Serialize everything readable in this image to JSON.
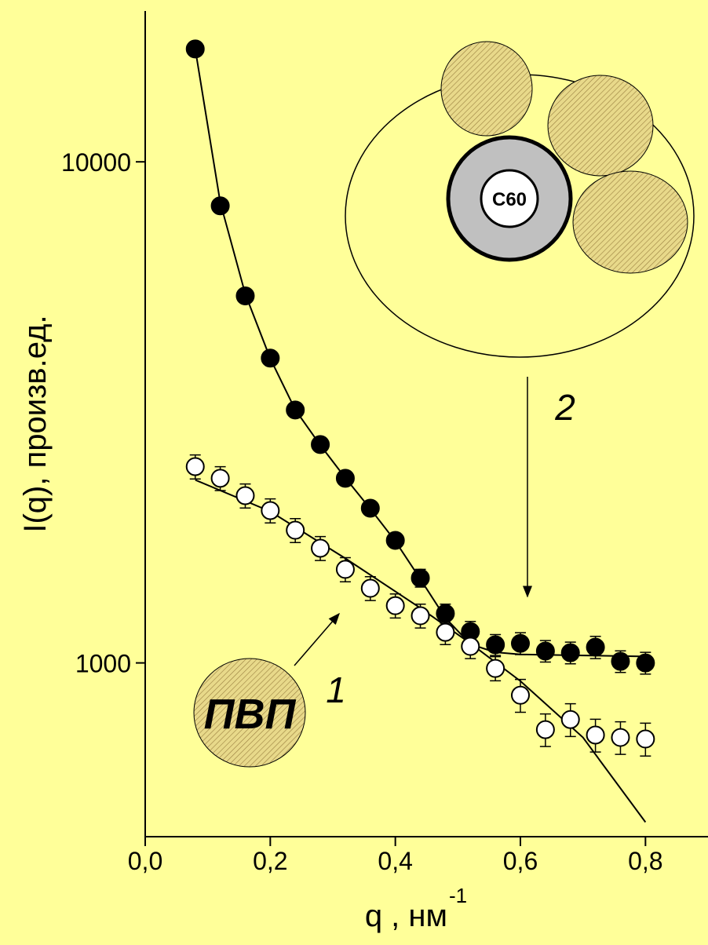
{
  "chart_data": {
    "type": "scatter",
    "log_y": true,
    "ylabel": "I(q), произв.ед.",
    "xlabel": "q ,  нм",
    "xlabel_exponent": "-1",
    "xlim": [
      0,
      0.9
    ],
    "ylim": [
      450,
      20000
    ],
    "xticks": [
      {
        "value": 0,
        "label": "0,0"
      },
      {
        "value": 0.2,
        "label": "0,2"
      },
      {
        "value": 0.4,
        "label": "0,4"
      },
      {
        "value": 0.6,
        "label": "0,6"
      },
      {
        "value": 0.8,
        "label": "0,8"
      }
    ],
    "yticks": [
      1000,
      10000
    ],
    "x": [
      0.08,
      0.12,
      0.16,
      0.2,
      0.24,
      0.28,
      0.32,
      0.36,
      0.4,
      0.44,
      0.48,
      0.52,
      0.56,
      0.6,
      0.64,
      0.68,
      0.72,
      0.76,
      0.8
    ],
    "series": [
      {
        "color": "#000000",
        "fill": "#000000",
        "values": [
          16800,
          8170,
          5400,
          4058,
          3197,
          2728,
          2336,
          2036,
          1756,
          1477,
          1255,
          1155,
          1087,
          1094,
          1056,
          1048,
          1075,
          1007,
          1000
        ],
        "errors": [
          0,
          0,
          0,
          0,
          0,
          0,
          0,
          0,
          0,
          60,
          55,
          55,
          52,
          55,
          52,
          52,
          55,
          50,
          50
        ]
      },
      {
        "color": "#000000",
        "fill": "#ffffff",
        "values": [
          2465,
          2336,
          2157,
          2014,
          1840,
          1694,
          1537,
          1409,
          1301,
          1242,
          1151,
          1079,
          975,
          862,
          736,
          771,
          718,
          710,
          705
        ],
        "errors": [
          136,
          128,
          119,
          111,
          101,
          93,
          85,
          77,
          72,
          68,
          63,
          59,
          54,
          65,
          55,
          58,
          54,
          53,
          53
        ]
      }
    ],
    "fits": [
      {
        "color": "#000000",
        "x": [
          0.08,
          0.2,
          0.32,
          0.44,
          0.52,
          0.6,
          0.7,
          0.8
        ],
        "values": [
          2318,
          2006,
          1617,
          1287,
          1094,
          920,
          710,
          481
        ]
      },
      {
        "color": "#000000",
        "x": [
          0.08,
          0.12,
          0.16,
          0.2,
          0.24,
          0.28,
          0.32,
          0.36,
          0.4,
          0.44,
          0.48,
          0.52,
          0.56,
          0.6,
          0.7,
          0.8
        ],
        "values": [
          16800,
          8300,
          5450,
          4050,
          3200,
          2720,
          2340,
          2030,
          1750,
          1470,
          1230,
          1090,
          1050,
          1040,
          1035,
          1030
        ]
      }
    ],
    "annotations": [
      {
        "text": "1"
      },
      {
        "text": "2"
      },
      {
        "text": "ПВП"
      },
      {
        "text": "C60"
      }
    ]
  }
}
